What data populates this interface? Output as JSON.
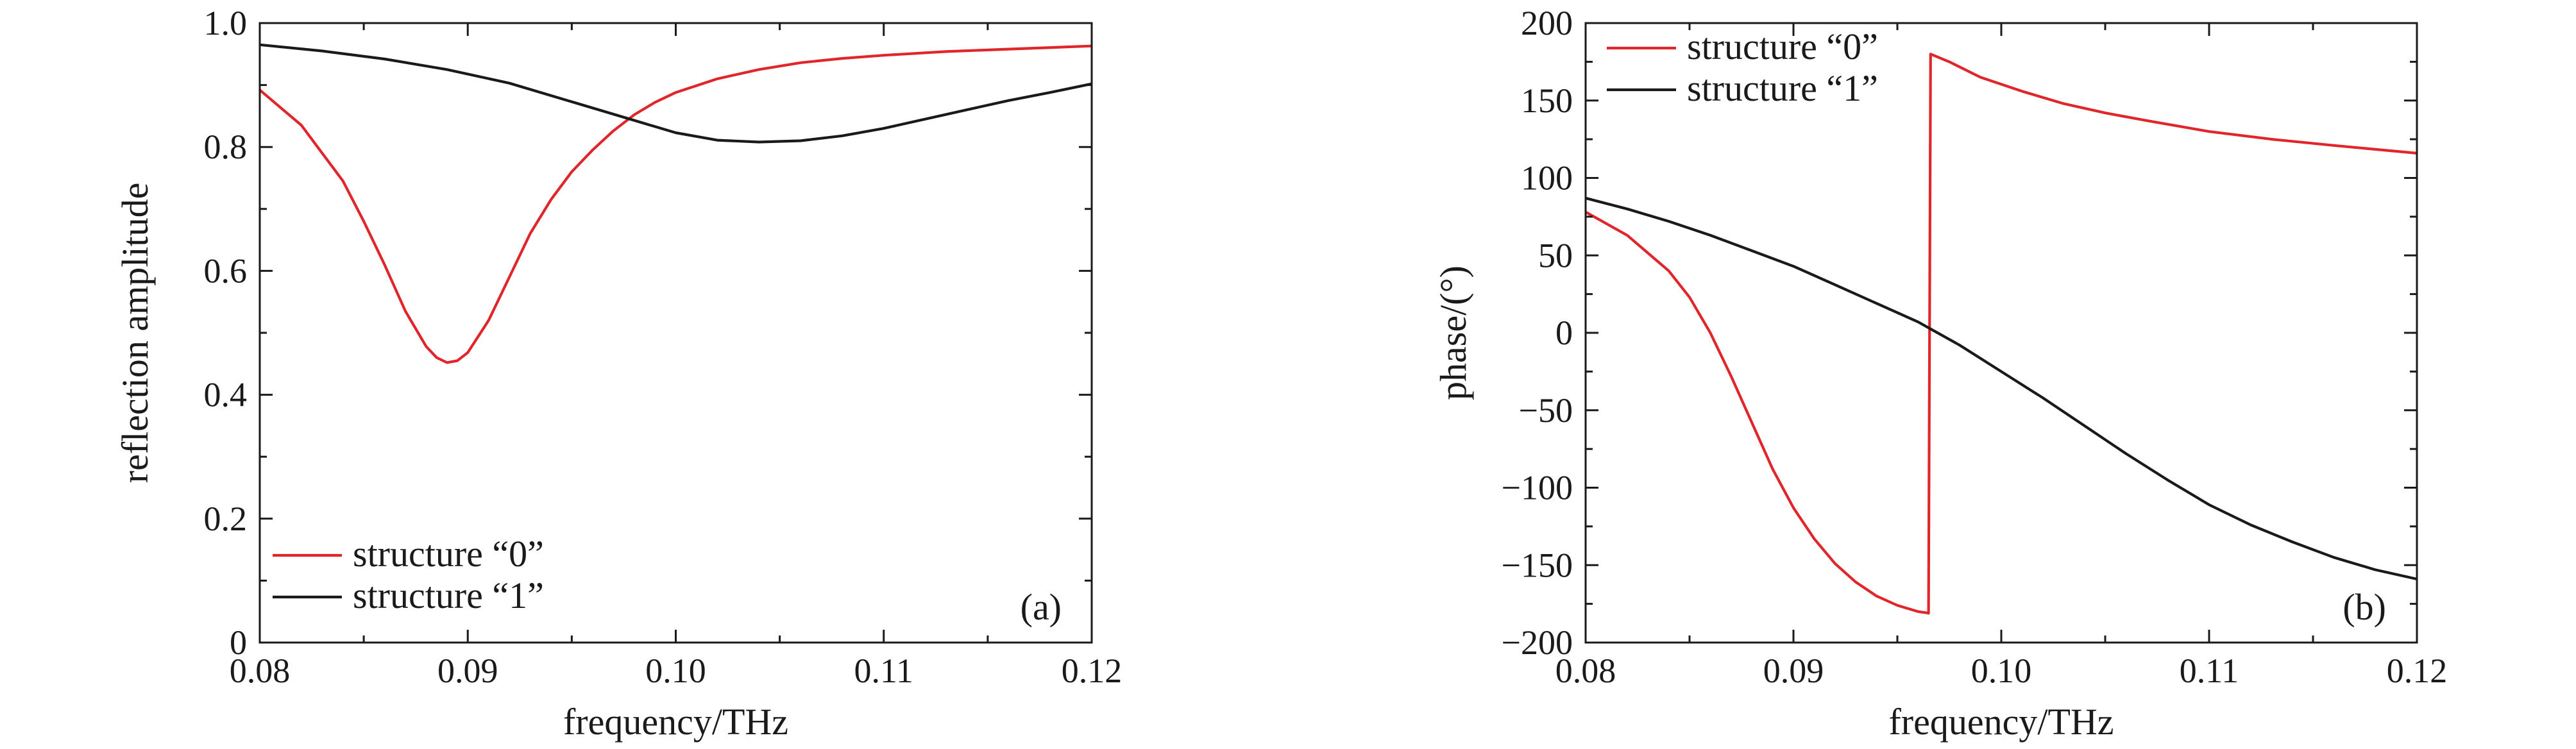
{
  "colors": {
    "series_0": "#e0262b",
    "series_1": "#1a1a1a",
    "axes": "#1a1a1a"
  },
  "chart_data": [
    {
      "type": "line",
      "panel_label": "(a)",
      "xlabel": "frequency/THz",
      "ylabel": "reflection amplitude",
      "xlim": [
        0.08,
        0.12
      ],
      "ylim": [
        0,
        1.0
      ],
      "x_ticks": [
        0.08,
        0.09,
        0.1,
        0.11,
        0.12
      ],
      "x_tick_labels": [
        "0.08",
        "0.09",
        "0.10",
        "0.11",
        "0.12"
      ],
      "y_ticks": [
        0,
        0.2,
        0.4,
        0.6,
        0.8,
        1.0
      ],
      "y_tick_labels": [
        "0",
        "0.2",
        "0.4",
        "0.6",
        "0.8",
        "1.0"
      ],
      "grid": false,
      "legend_position": "bottom-left",
      "series": [
        {
          "name": "structure “0”",
          "color": "#e0262b",
          "x": [
            0.08,
            0.082,
            0.084,
            0.085,
            0.086,
            0.087,
            0.088,
            0.0885,
            0.089,
            0.0895,
            0.09,
            0.091,
            0.092,
            0.093,
            0.094,
            0.095,
            0.096,
            0.097,
            0.098,
            0.099,
            0.1,
            0.102,
            0.104,
            0.106,
            0.108,
            0.11,
            0.113,
            0.116,
            0.12
          ],
          "y": [
            0.892,
            0.835,
            0.745,
            0.68,
            0.61,
            0.535,
            0.478,
            0.46,
            0.452,
            0.455,
            0.468,
            0.52,
            0.59,
            0.66,
            0.715,
            0.76,
            0.795,
            0.826,
            0.852,
            0.872,
            0.888,
            0.91,
            0.925,
            0.936,
            0.943,
            0.948,
            0.954,
            0.958,
            0.963
          ]
        },
        {
          "name": "structure “1”",
          "color": "#1a1a1a",
          "x": [
            0.08,
            0.083,
            0.086,
            0.089,
            0.092,
            0.095,
            0.098,
            0.1,
            0.102,
            0.104,
            0.106,
            0.108,
            0.11,
            0.112,
            0.114,
            0.116,
            0.118,
            0.12
          ],
          "y": [
            0.965,
            0.955,
            0.942,
            0.925,
            0.903,
            0.873,
            0.843,
            0.823,
            0.811,
            0.808,
            0.81,
            0.818,
            0.83,
            0.845,
            0.86,
            0.875,
            0.888,
            0.902
          ]
        }
      ]
    },
    {
      "type": "line",
      "panel_label": "(b)",
      "xlabel": "frequency/THz",
      "ylabel": "phase/(°)",
      "xlim": [
        0.08,
        0.12
      ],
      "ylim": [
        -200,
        200
      ],
      "x_ticks": [
        0.08,
        0.09,
        0.1,
        0.11,
        0.12
      ],
      "x_tick_labels": [
        "0.08",
        "0.09",
        "0.10",
        "0.11",
        "0.12"
      ],
      "y_ticks": [
        -200,
        -150,
        -100,
        -50,
        0,
        50,
        100,
        150,
        200
      ],
      "y_tick_labels": [
        "−200",
        "−150",
        "−100",
        "−50",
        "0",
        "50",
        "100",
        "150",
        "200"
      ],
      "grid": false,
      "legend_position": "top-left",
      "series": [
        {
          "name": "structure “0”",
          "color": "#e0262b",
          "segments": [
            {
              "x": [
                0.08,
                0.082,
                0.084,
                0.085,
                0.086,
                0.087,
                0.088,
                0.089,
                0.09,
                0.091,
                0.092,
                0.093,
                0.094,
                0.095,
                0.096,
                0.0965
              ],
              "y": [
                78,
                63,
                40,
                23,
                0,
                -28,
                -58,
                -88,
                -113,
                -133,
                -149,
                -161,
                -170,
                -176,
                -180,
                -181
              ]
            },
            {
              "x": [
                0.0965,
                0.0966,
                0.0975,
                0.099,
                0.101,
                0.103,
                0.105,
                0.107,
                0.11,
                0.113,
                0.116,
                0.12
              ],
              "y": [
                -181,
                180,
                175,
                165,
                156,
                148,
                142,
                137,
                130,
                125,
                121,
                116
              ]
            }
          ]
        },
        {
          "name": "structure “1”",
          "color": "#1a1a1a",
          "segments": [
            {
              "x": [
                0.08,
                0.082,
                0.084,
                0.086,
                0.088,
                0.09,
                0.092,
                0.094,
                0.096,
                0.098,
                0.1,
                0.102,
                0.104,
                0.106,
                0.108,
                0.11,
                0.112,
                0.114,
                0.116,
                0.118,
                0.12
              ],
              "y": [
                87,
                80,
                72,
                63,
                53,
                43,
                31,
                19,
                7,
                -8,
                -25,
                -42,
                -60,
                -78,
                -95,
                -111,
                -124,
                -135,
                -145,
                -153,
                -159
              ]
            }
          ]
        }
      ]
    }
  ]
}
